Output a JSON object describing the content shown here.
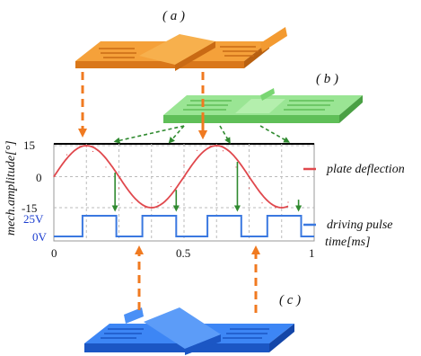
{
  "panels": {
    "a": "( a )",
    "b": "( b )",
    "c": "( c )"
  },
  "legend": {
    "plate": "plate deflection",
    "pulse": "driving pulse"
  },
  "axes": {
    "ylabel": "mech.amplitude[°]",
    "xlabel": "time[ms]",
    "y_ticks": [
      "15",
      "0",
      "-15"
    ],
    "x_ticks": [
      "0",
      "0.5",
      "1"
    ],
    "voltage_ticks": [
      "25V",
      "0V"
    ]
  },
  "colors": {
    "orange": "#f08a1e",
    "green": "#8fe08a",
    "blue": "#2a73ee",
    "red": "#e0484d",
    "pulse": "#3a78e0",
    "arrow_green": "#2f8a2f",
    "arrow_orange": "#f07a20"
  },
  "chart_data": {
    "type": "line",
    "series": [
      {
        "name": "plate deflection",
        "x": [
          0,
          0.05,
          0.1,
          0.125,
          0.15,
          0.2,
          0.25,
          0.3,
          0.35,
          0.375,
          0.4,
          0.45,
          0.5,
          0.55,
          0.6,
          0.625,
          0.65,
          0.7,
          0.75,
          0.8,
          0.85,
          0.875,
          0.9
        ],
        "values": [
          0,
          10.6,
          15,
          14.5,
          12.2,
          4.6,
          -5.5,
          -12.7,
          -15,
          -14.6,
          -12.5,
          -4.8,
          5.5,
          12.7,
          15,
          14.6,
          12.5,
          4.6,
          -5.5,
          -12.7,
          -15,
          -14.6,
          -12.4
        ]
      },
      {
        "name": "driving pulse",
        "x": [
          0,
          0.11,
          0.11,
          0.24,
          0.24,
          0.34,
          0.34,
          0.47,
          0.47,
          0.59,
          0.59,
          0.72,
          0.72,
          0.82,
          0.82,
          0.95,
          0.95,
          1.0
        ],
        "values": [
          0,
          0,
          25,
          25,
          0,
          0,
          25,
          25,
          0,
          0,
          25,
          25,
          0,
          0,
          25,
          25,
          0,
          0
        ]
      }
    ],
    "xlim": [
      0,
      1
    ],
    "ylim": [
      -15,
      15
    ],
    "voltage_range": [
      0,
      25
    ],
    "grid": true,
    "legend_position": "right"
  }
}
